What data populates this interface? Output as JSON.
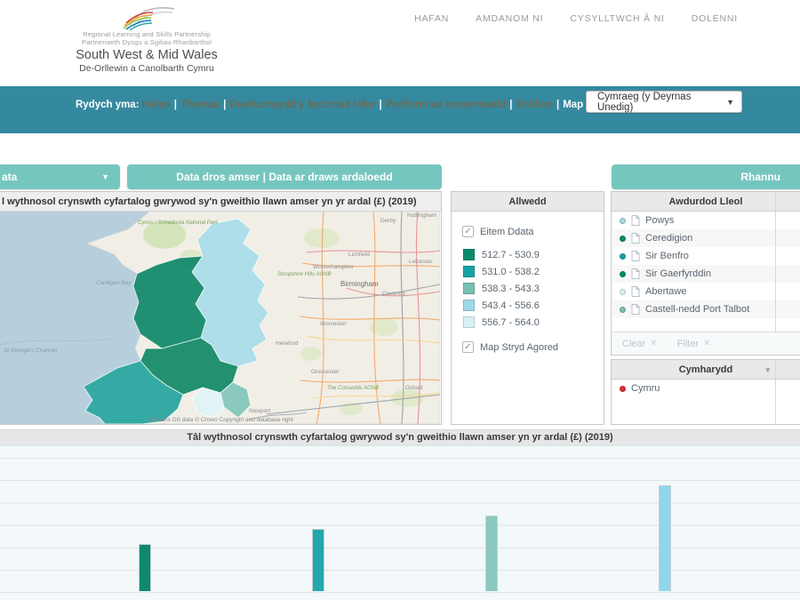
{
  "icons": {
    "dropdown_arrow": "▼",
    "chevron_down": "▾",
    "close": "✕",
    "check": "✓",
    "sort": "▾"
  },
  "header": {
    "logo": {
      "line1": "Regional Learning and Skills Partnership",
      "line2": "Partneriaeth Dysgu a Sgiliau Rhanbarthol",
      "line3": "South West & Mid Wales",
      "line4": "De-Orllewin a Canolbarth Cymru"
    },
    "nav": [
      {
        "label": "HAFAN"
      },
      {
        "label": "AMDANOM NI"
      },
      {
        "label": "CYSYLLTWCH Â NI"
      },
      {
        "label": "DOLENNI"
      }
    ]
  },
  "breadcrumb": {
    "prefix": "Rydych yma:",
    "separator": "|",
    "links": [
      {
        "label": "Hafan"
      },
      {
        "label": "Themau"
      },
      {
        "label": "Deallusrwydd y farchnad lafur"
      },
      {
        "label": "Perfformiad economaidd"
      },
      {
        "label": "Enillion"
      }
    ],
    "current": "Map"
  },
  "language_select": {
    "value": "Cymraeg (y Deyrnas Unedig)"
  },
  "toolbar": {
    "data_dropdown_label": "ata",
    "view_toggle_label": "Data dros amser | Data ar draws ardaloedd",
    "share_label": "Rhannu"
  },
  "map_panel": {
    "title": "l wythnosol crynswth cyfartalog gwrywod sy'n gweithio llawn amser yn yr ardal (£) (2019)",
    "attribution": "Contains OS data © Crown Copyright and database right",
    "places": [
      {
        "name": "Cymru / Snowdonia National Park"
      },
      {
        "name": "Cardigan Bay"
      },
      {
        "name": "St George's Channel"
      },
      {
        "name": "Shropshire Hills AONB"
      },
      {
        "name": "Wolverhampton"
      },
      {
        "name": "Birmingham"
      },
      {
        "name": "Coventry"
      },
      {
        "name": "Lichfield"
      },
      {
        "name": "Leicester"
      },
      {
        "name": "Derby"
      },
      {
        "name": "Nottingham"
      },
      {
        "name": "Worcester"
      },
      {
        "name": "Hereford"
      },
      {
        "name": "Gloucester"
      },
      {
        "name": "The Cotswolds AONB"
      },
      {
        "name": "Oxford"
      },
      {
        "name": "Newport"
      }
    ]
  },
  "legend": {
    "title": "Allwedd",
    "data_item_label": "Eitem Ddata",
    "data_item_checked": true,
    "classes": [
      {
        "range": "512.7 - 530.9",
        "color": "#0b8a6b"
      },
      {
        "range": "531.0 - 538.2",
        "color": "#16a2a2"
      },
      {
        "range": "538.3 - 543.3",
        "color": "#77c0b2"
      },
      {
        "range": "543.4 - 556.6",
        "color": "#9fd8e6"
      },
      {
        "range": "556.7 - 564.0",
        "color": "#d9f0f3"
      }
    ],
    "basemap_label": "Map Stryd Agored",
    "basemap_checked": true
  },
  "local_authority_panel": {
    "title": "Awdurdod Lleol",
    "items": [
      {
        "name": "Powys",
        "dot_color": "#9fd8e6"
      },
      {
        "name": "Ceredigion",
        "dot_color": "#0b8a6b"
      },
      {
        "name": "Sir Benfro",
        "dot_color": "#16a2a2"
      },
      {
        "name": "Sir Gaerfyrddin",
        "dot_color": "#0b8a6b"
      },
      {
        "name": "Abertawe",
        "dot_color": "#d9f0f3"
      },
      {
        "name": "Castell-nedd Port Talbot",
        "dot_color": "#77c0b2"
      }
    ],
    "clear_label": "Clear",
    "filter_label": "Filter"
  },
  "comparator_panel": {
    "title": "Cymharydd",
    "items": [
      {
        "name": "Cymru",
        "dot_color": "#e03030"
      }
    ]
  },
  "chart_data": {
    "type": "bar",
    "title": "Tâl wythnosol crynswth cyfartalog gwrywod sy'n gweithio llawn amser yn yr ardal (£) (2019)",
    "categories": [
      "",
      "",
      "",
      ""
    ],
    "values": [
      525,
      533,
      540,
      556
    ],
    "colors": [
      "#0d8a6e",
      "#23a7ad",
      "#8bc8bd",
      "#8ed7ea"
    ],
    "ylabel": "",
    "xlabel": "",
    "ylim": [
      500,
      575
    ],
    "grid": true,
    "legend_position": "none",
    "x_axis_labels_visible": false
  }
}
